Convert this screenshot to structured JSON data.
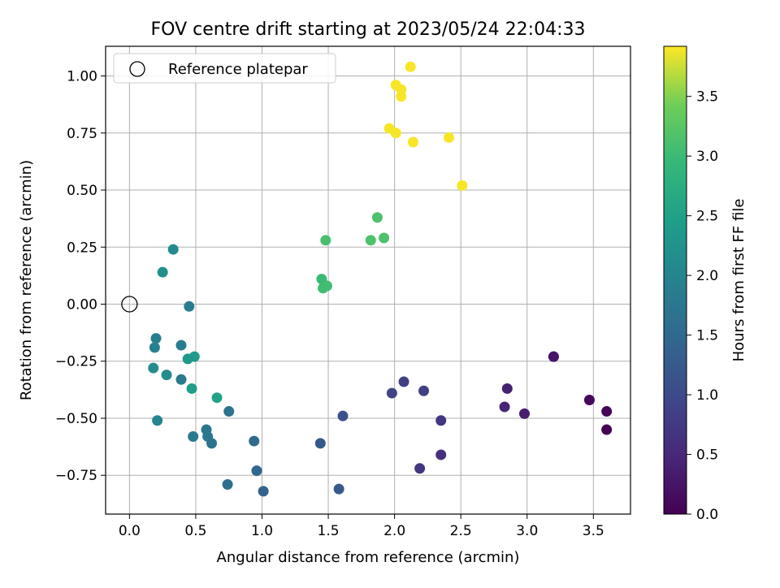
{
  "chart_data": {
    "type": "scatter",
    "title": "FOV centre drift starting at 2023/05/24 22:04:33",
    "xlabel": "Angular distance from reference (arcmin)",
    "ylabel": "Rotation from reference (arcmin)",
    "xlim": [
      -0.18,
      3.78
    ],
    "ylim": [
      -0.92,
      1.13
    ],
    "xticks": [
      0.0,
      0.5,
      1.0,
      1.5,
      2.0,
      2.5,
      3.0,
      3.5
    ],
    "xtick_labels": [
      "0.0",
      "0.5",
      "1.0",
      "1.5",
      "2.0",
      "2.5",
      "3.0",
      "3.5"
    ],
    "yticks": [
      -0.75,
      -0.5,
      -0.25,
      0.0,
      0.25,
      0.5,
      0.75,
      1.0
    ],
    "ytick_labels": [
      "−0.75",
      "−0.50",
      "−0.25",
      "0.00",
      "0.25",
      "0.50",
      "0.75",
      "1.00"
    ],
    "grid": true,
    "legend": {
      "placement": "top-left",
      "entries": [
        "Reference platepar"
      ]
    },
    "reference_point": {
      "x": 0.0,
      "y": 0.0,
      "label": "Reference platepar"
    },
    "colorbar": {
      "label": "Hours from first FF file",
      "colormap": "viridis",
      "range": [
        0.0,
        3.92
      ],
      "ticks": [
        0.0,
        0.5,
        1.0,
        1.5,
        2.0,
        2.5,
        3.0,
        3.5
      ],
      "tick_labels": [
        "0.0",
        "0.5",
        "1.0",
        "1.5",
        "2.0",
        "2.5",
        "3.0",
        "3.5"
      ]
    },
    "points": [
      {
        "x": 3.6,
        "y": -0.55,
        "c": 0.0
      },
      {
        "x": 3.6,
        "y": -0.47,
        "c": 0.05
      },
      {
        "x": 3.47,
        "y": -0.42,
        "c": 0.1
      },
      {
        "x": 3.2,
        "y": -0.23,
        "c": 0.2
      },
      {
        "x": 3.2,
        "y": -0.23,
        "c": 0.25
      },
      {
        "x": 2.98,
        "y": -0.48,
        "c": 0.35
      },
      {
        "x": 2.85,
        "y": -0.37,
        "c": 0.4
      },
      {
        "x": 2.83,
        "y": -0.45,
        "c": 0.45
      },
      {
        "x": 2.35,
        "y": -0.66,
        "c": 0.6
      },
      {
        "x": 2.35,
        "y": -0.51,
        "c": 0.7
      },
      {
        "x": 2.19,
        "y": -0.72,
        "c": 0.7
      },
      {
        "x": 2.22,
        "y": -0.38,
        "c": 0.85
      },
      {
        "x": 2.07,
        "y": -0.34,
        "c": 0.85
      },
      {
        "x": 1.98,
        "y": -0.39,
        "c": 0.9
      },
      {
        "x": 1.61,
        "y": -0.49,
        "c": 1.1
      },
      {
        "x": 1.44,
        "y": -0.61,
        "c": 1.2
      },
      {
        "x": 1.58,
        "y": -0.81,
        "c": 1.25
      },
      {
        "x": 1.01,
        "y": -0.82,
        "c": 1.4
      },
      {
        "x": 0.96,
        "y": -0.73,
        "c": 1.45
      },
      {
        "x": 0.94,
        "y": -0.6,
        "c": 1.5
      },
      {
        "x": 0.74,
        "y": -0.79,
        "c": 1.6
      },
      {
        "x": 0.75,
        "y": -0.47,
        "c": 1.65
      },
      {
        "x": 0.62,
        "y": -0.61,
        "c": 1.7
      },
      {
        "x": 0.58,
        "y": -0.55,
        "c": 1.75
      },
      {
        "x": 0.59,
        "y": -0.58,
        "c": 1.75
      },
      {
        "x": 0.48,
        "y": -0.58,
        "c": 1.8
      },
      {
        "x": 0.39,
        "y": -0.33,
        "c": 1.8
      },
      {
        "x": 0.39,
        "y": -0.18,
        "c": 1.85
      },
      {
        "x": 0.45,
        "y": -0.01,
        "c": 1.85
      },
      {
        "x": 0.2,
        "y": -0.15,
        "c": 1.9
      },
      {
        "x": 0.19,
        "y": -0.19,
        "c": 1.95
      },
      {
        "x": 0.21,
        "y": -0.51,
        "c": 2.0
      },
      {
        "x": 0.33,
        "y": 0.24,
        "c": 2.1
      },
      {
        "x": 0.28,
        "y": -0.31,
        "c": 2.15
      },
      {
        "x": 0.18,
        "y": -0.28,
        "c": 2.15
      },
      {
        "x": 0.25,
        "y": 0.14,
        "c": 2.2
      },
      {
        "x": 0.44,
        "y": -0.24,
        "c": 2.35
      },
      {
        "x": 0.49,
        "y": -0.23,
        "c": 2.4
      },
      {
        "x": 0.47,
        "y": -0.37,
        "c": 2.45
      },
      {
        "x": 0.66,
        "y": -0.41,
        "c": 2.55
      },
      {
        "x": 1.45,
        "y": 0.11,
        "c": 3.0
      },
      {
        "x": 1.46,
        "y": 0.07,
        "c": 3.05
      },
      {
        "x": 1.49,
        "y": 0.08,
        "c": 3.05
      },
      {
        "x": 1.48,
        "y": 0.28,
        "c": 3.1
      },
      {
        "x": 1.82,
        "y": 0.28,
        "c": 3.15
      },
      {
        "x": 1.92,
        "y": 0.29,
        "c": 3.15
      },
      {
        "x": 1.87,
        "y": 0.38,
        "c": 3.15
      },
      {
        "x": 2.51,
        "y": 0.52,
        "c": 3.9
      },
      {
        "x": 2.41,
        "y": 0.73,
        "c": 3.9
      },
      {
        "x": 2.14,
        "y": 0.71,
        "c": 3.9
      },
      {
        "x": 2.01,
        "y": 0.75,
        "c": 3.9
      },
      {
        "x": 1.96,
        "y": 0.77,
        "c": 3.9
      },
      {
        "x": 2.05,
        "y": 0.91,
        "c": 3.9
      },
      {
        "x": 2.05,
        "y": 0.94,
        "c": 3.9
      },
      {
        "x": 2.01,
        "y": 0.96,
        "c": 3.9
      },
      {
        "x": 2.12,
        "y": 1.04,
        "c": 3.9
      }
    ]
  }
}
